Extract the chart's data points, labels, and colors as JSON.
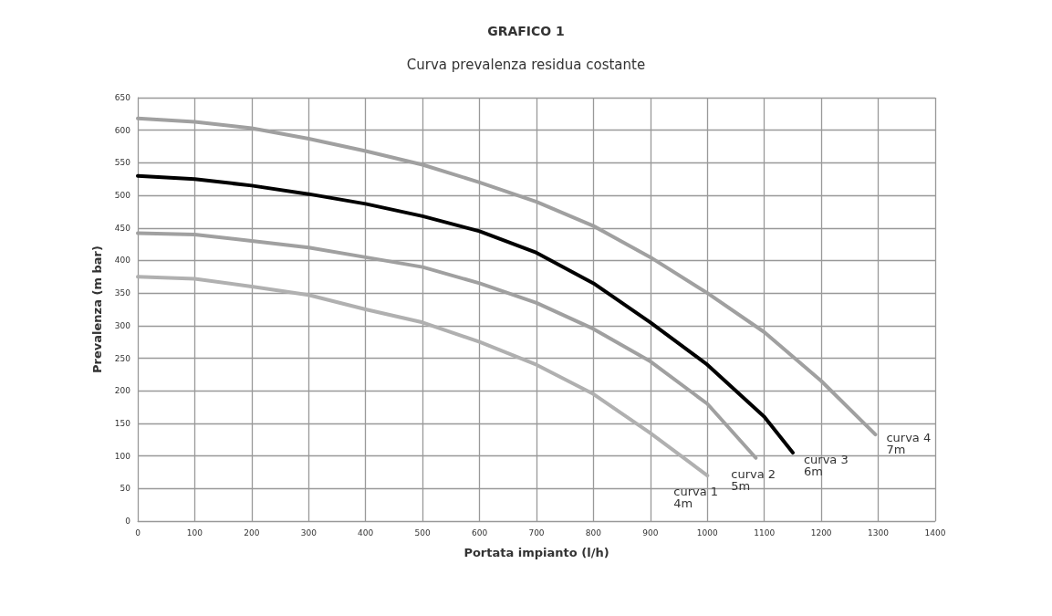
{
  "chart_data": {
    "type": "line",
    "title": "GRAFICO 1",
    "subtitle": "Curva prevalenza residua costante",
    "xlabel": "Portata impianto (l/h)",
    "ylabel": "Prevalenza (m bar)",
    "xlim": [
      0,
      1400
    ],
    "xticks": [
      0,
      100,
      200,
      300,
      400,
      500,
      600,
      700,
      800,
      900,
      1000,
      1100,
      1200,
      1300,
      1400
    ],
    "ylim": [
      0,
      650
    ],
    "yticks": [
      0,
      50,
      100,
      150,
      200,
      250,
      300,
      350,
      400,
      450,
      500,
      550,
      600,
      650
    ],
    "grid": true,
    "legend": false,
    "marker": "none",
    "line_style": "solid",
    "series": [
      {
        "name": "curva 1\n4m",
        "color": "#b0b0b0",
        "x": [
          0,
          100,
          200,
          300,
          400,
          500,
          600,
          700,
          800,
          900,
          1000
        ],
        "values": [
          375,
          372,
          360,
          347,
          325,
          305,
          275,
          240,
          195,
          135,
          70
        ]
      },
      {
        "name": "curva 2\n5m",
        "color": "#a0a0a0",
        "x": [
          0,
          100,
          200,
          300,
          400,
          500,
          600,
          700,
          800,
          900,
          1000,
          1085
        ],
        "values": [
          442,
          440,
          430,
          420,
          405,
          390,
          365,
          335,
          295,
          245,
          180,
          97
        ]
      },
      {
        "name": "curva 3\n6m",
        "color": "#000000",
        "x": [
          0,
          100,
          200,
          300,
          400,
          500,
          600,
          700,
          800,
          900,
          1000,
          1100,
          1150
        ],
        "values": [
          530,
          525,
          515,
          502,
          487,
          468,
          445,
          412,
          365,
          305,
          240,
          160,
          105
        ]
      },
      {
        "name": "curva 4\n7m",
        "color": "#a0a0a0",
        "x": [
          0,
          100,
          200,
          300,
          400,
          500,
          600,
          700,
          800,
          900,
          1000,
          1100,
          1200,
          1295
        ],
        "values": [
          618,
          613,
          603,
          587,
          568,
          547,
          520,
          490,
          453,
          405,
          350,
          290,
          215,
          133
        ]
      }
    ]
  }
}
